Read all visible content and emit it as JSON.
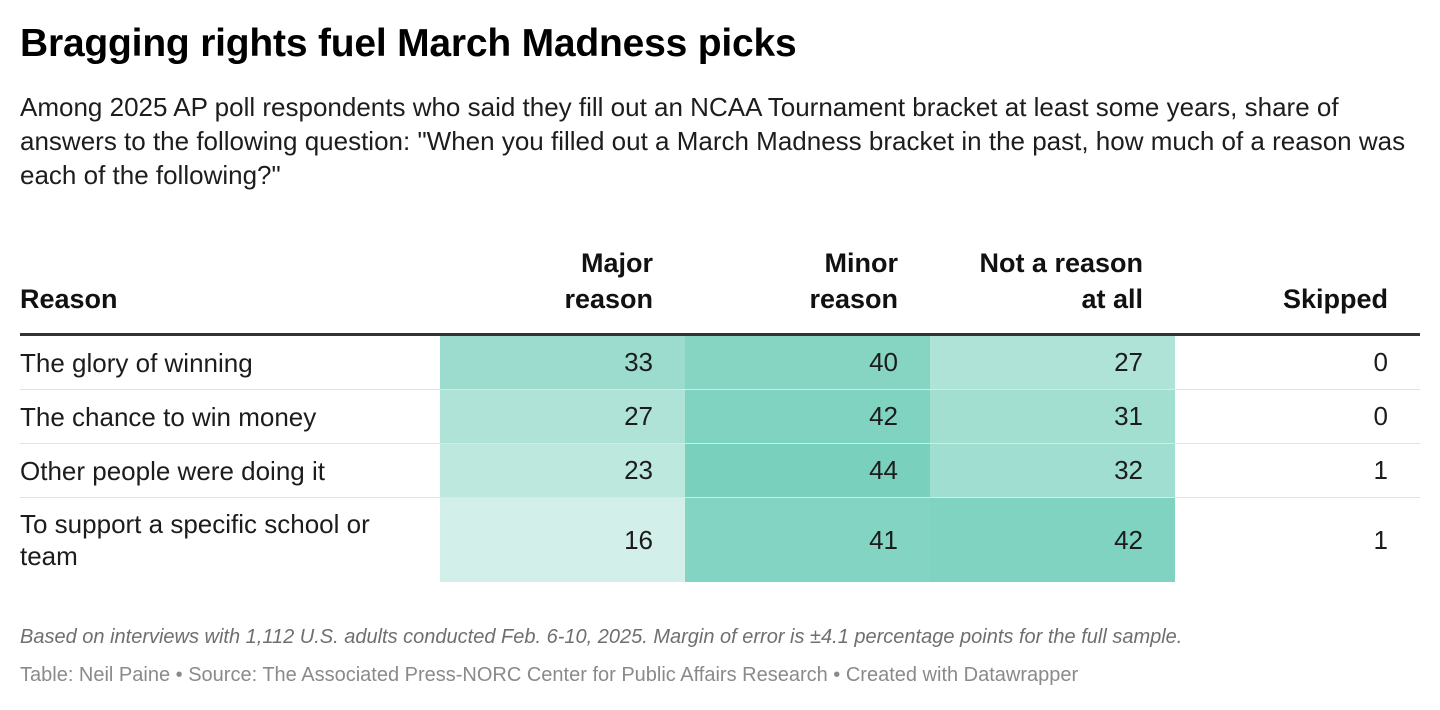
{
  "title": "Bragging rights fuel March Madness picks",
  "subtitle": "Among 2025 AP poll respondents who said they fill out an NCAA Tournament bracket at least some years, share of answers to the following question: \"When you filled out a March Madness bracket in the past, how much of a reason was each of the following?\"",
  "heat_color": "#2bb596",
  "chart_data": {
    "type": "table",
    "columns": [
      "Reason",
      "Major reason",
      "Minor reason",
      "Not a reason at all",
      "Skipped"
    ],
    "column_headers": [
      [
        "Reason"
      ],
      [
        "Major",
        "reason"
      ],
      [
        "Minor",
        "reason"
      ],
      [
        "Not a reason",
        "at all"
      ],
      [
        "Skipped"
      ]
    ],
    "heatmap_columns": [
      "Major reason",
      "Minor reason",
      "Not a reason at all"
    ],
    "rows": [
      {
        "reason": "The glory of winning",
        "values": [
          33,
          40,
          27,
          0
        ]
      },
      {
        "reason": "The chance to win money",
        "values": [
          27,
          42,
          31,
          0
        ]
      },
      {
        "reason": "Other people were doing it",
        "values": [
          23,
          44,
          32,
          1
        ]
      },
      {
        "reason": "To support a specific school or team",
        "values": [
          16,
          41,
          42,
          1
        ]
      }
    ]
  },
  "notes": "Based on interviews with 1,112 U.S. adults conducted Feb. 6-10, 2025. Margin of error is ±4.1 percentage points for the full sample.",
  "source_line": "Table: Neil Paine • Source: The Associated Press-NORC Center for Public Affairs Research • Created with Datawrapper"
}
